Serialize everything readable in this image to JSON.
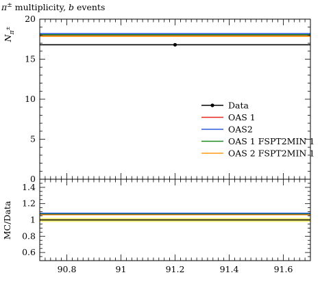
{
  "chart_data": {
    "type": "line",
    "title": "π± multiplicity, b events",
    "title_parts": {
      "symbol": "π",
      "sup": "±",
      "text": " multiplicity, ",
      "italic": "b",
      "rest": " events"
    },
    "xlim": [
      90.7,
      91.7
    ],
    "x_ticks": [
      90.8,
      91,
      91.2,
      91.4,
      91.6
    ],
    "x_tick_labels": [
      "90.8",
      "91",
      "91.2",
      "91.4",
      "91.6"
    ],
    "main": {
      "ylabel": "N",
      "ylabel_sub": "π",
      "ylabel_sub_sup": "±",
      "ylim": [
        0,
        20
      ],
      "y_ticks": [
        0,
        5,
        10,
        15,
        20
      ],
      "y_tick_labels": [
        "0",
        "5",
        "10",
        "15",
        "20"
      ],
      "data": {
        "name": "Data",
        "x": 91.2,
        "y": 16.8,
        "x_range": [
          90.7,
          91.7
        ],
        "color": "#000000"
      },
      "series": [
        {
          "name": "OAS 1",
          "y": 18.0,
          "color": "#e8261d"
        },
        {
          "name": "OAS2",
          "y": 18.2,
          "color": "#2a5cdb"
        },
        {
          "name": "OAS 1 FSPT2MIN 1",
          "y": 18.05,
          "color": "#1c8a1c"
        },
        {
          "name": "OAS 2 FSPT2MIN 1",
          "y": 17.85,
          "color": "#ff9a17"
        }
      ],
      "legend_position": "right"
    },
    "ratio": {
      "ylabel": "MC/Data",
      "ylim": [
        0.5,
        1.5
      ],
      "y_ticks": [
        0.6,
        0.8,
        1,
        1.2,
        1.4
      ],
      "y_tick_labels": [
        "0.6",
        "0.8",
        "1",
        "1.2",
        "1.4"
      ],
      "band": {
        "low": 0.975,
        "high": 1.025,
        "color": "#f5f07a"
      },
      "reference": 1.0,
      "series": [
        {
          "name": "OAS 1",
          "y": 1.072,
          "color": "#e8261d"
        },
        {
          "name": "OAS2",
          "y": 1.083,
          "color": "#2a5cdb"
        },
        {
          "name": "OAS 1 FSPT2MIN 1",
          "y": 1.075,
          "color": "#1c8a1c"
        },
        {
          "name": "OAS 2 FSPT2MIN 1",
          "y": 1.063,
          "color": "#ff9a17"
        }
      ]
    }
  }
}
